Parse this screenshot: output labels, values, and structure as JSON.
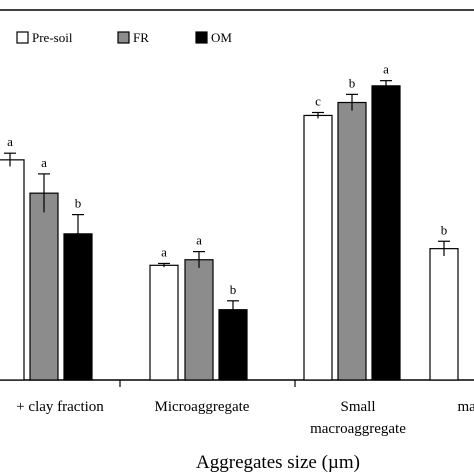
{
  "chart_data": {
    "type": "bar",
    "title": "",
    "xlabel": "Aggregates size (µm)",
    "ylabel": "",
    "ylim": [
      0,
      100
    ],
    "grid": false,
    "legend_position": "top-left",
    "categories": [
      {
        "lines": [
          "+ clay fraction"
        ]
      },
      {
        "lines": [
          "Microaggregate"
        ]
      },
      {
        "lines": [
          "Small",
          "macroaggregate"
        ]
      },
      {
        "lines": [
          "mac"
        ]
      }
    ],
    "series": [
      {
        "name": "Pre-soil",
        "color": "#ffffff",
        "values": [
          59.5,
          31,
          71.5,
          35.5
        ],
        "errors": [
          1.8,
          0.5,
          0.8,
          2.0
        ],
        "significance": [
          "a",
          "a",
          "c",
          "b"
        ]
      },
      {
        "name": "FR",
        "color": "#8c8c8c",
        "values": [
          50.5,
          32.5,
          75,
          null
        ],
        "errors": [
          5.2,
          2.2,
          2.2,
          null
        ],
        "significance": [
          "a",
          "a",
          "b",
          ""
        ]
      },
      {
        "name": "OM",
        "color": "#000000",
        "values": [
          39.5,
          19,
          79.5,
          null
        ],
        "errors": [
          5.2,
          2.4,
          1.4,
          null
        ],
        "significance": [
          "b",
          "b",
          "a",
          ""
        ]
      }
    ]
  }
}
